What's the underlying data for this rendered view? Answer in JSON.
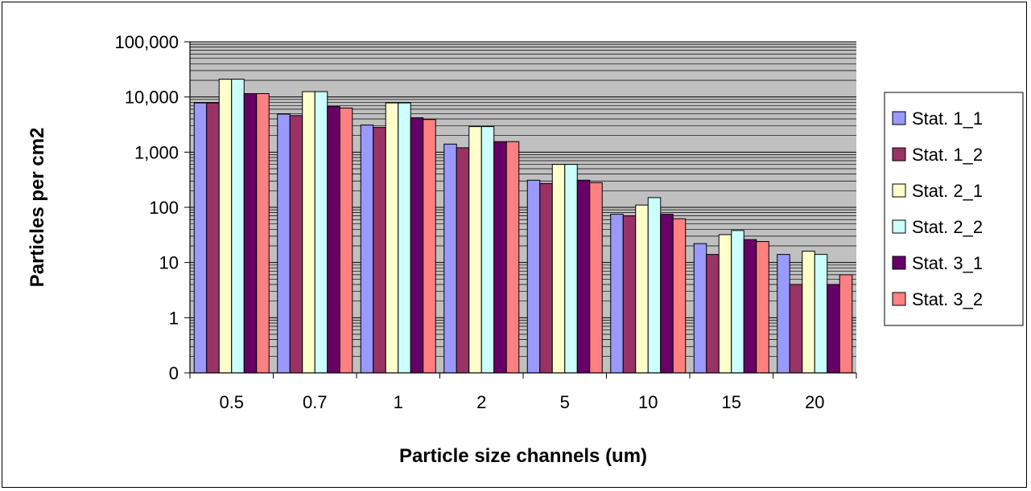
{
  "chart_data": {
    "type": "bar",
    "xlabel": "Particle size channels (um)",
    "ylabel": "Particles per cm2",
    "y_scale": "log",
    "ylim": [
      0.1,
      100000
    ],
    "y_ticks": [
      0.1,
      1,
      10,
      100,
      1000,
      10000,
      100000
    ],
    "y_tick_labels": [
      "0",
      "1",
      "10",
      "100",
      "1,000",
      "10,000",
      "100,000"
    ],
    "categories": [
      "0.5",
      "0.7",
      "1",
      "2",
      "5",
      "10",
      "15",
      "20"
    ],
    "grid": true,
    "legend_position": "right",
    "series": [
      {
        "name": "Stat. 1_1",
        "color": "#9999ff",
        "values": [
          7800,
          4900,
          3100,
          1400,
          310,
          75,
          22,
          14
        ]
      },
      {
        "name": "Stat. 1_2",
        "color": "#993366",
        "values": [
          7800,
          4600,
          2800,
          1200,
          270,
          70,
          14,
          4
        ]
      },
      {
        "name": "Stat. 2_1",
        "color": "#ffffcc",
        "values": [
          21000,
          12500,
          7800,
          2900,
          600,
          110,
          32,
          16
        ]
      },
      {
        "name": "Stat. 2_2",
        "color": "#ccffff",
        "values": [
          21000,
          12500,
          7800,
          2900,
          600,
          150,
          38,
          14
        ]
      },
      {
        "name": "Stat. 3_1",
        "color": "#660066",
        "values": [
          11500,
          6700,
          4200,
          1550,
          310,
          75,
          26,
          4
        ]
      },
      {
        "name": "Stat. 3_2",
        "color": "#ff8080",
        "values": [
          11500,
          6300,
          3900,
          1550,
          280,
          62,
          24,
          6
        ]
      }
    ]
  }
}
